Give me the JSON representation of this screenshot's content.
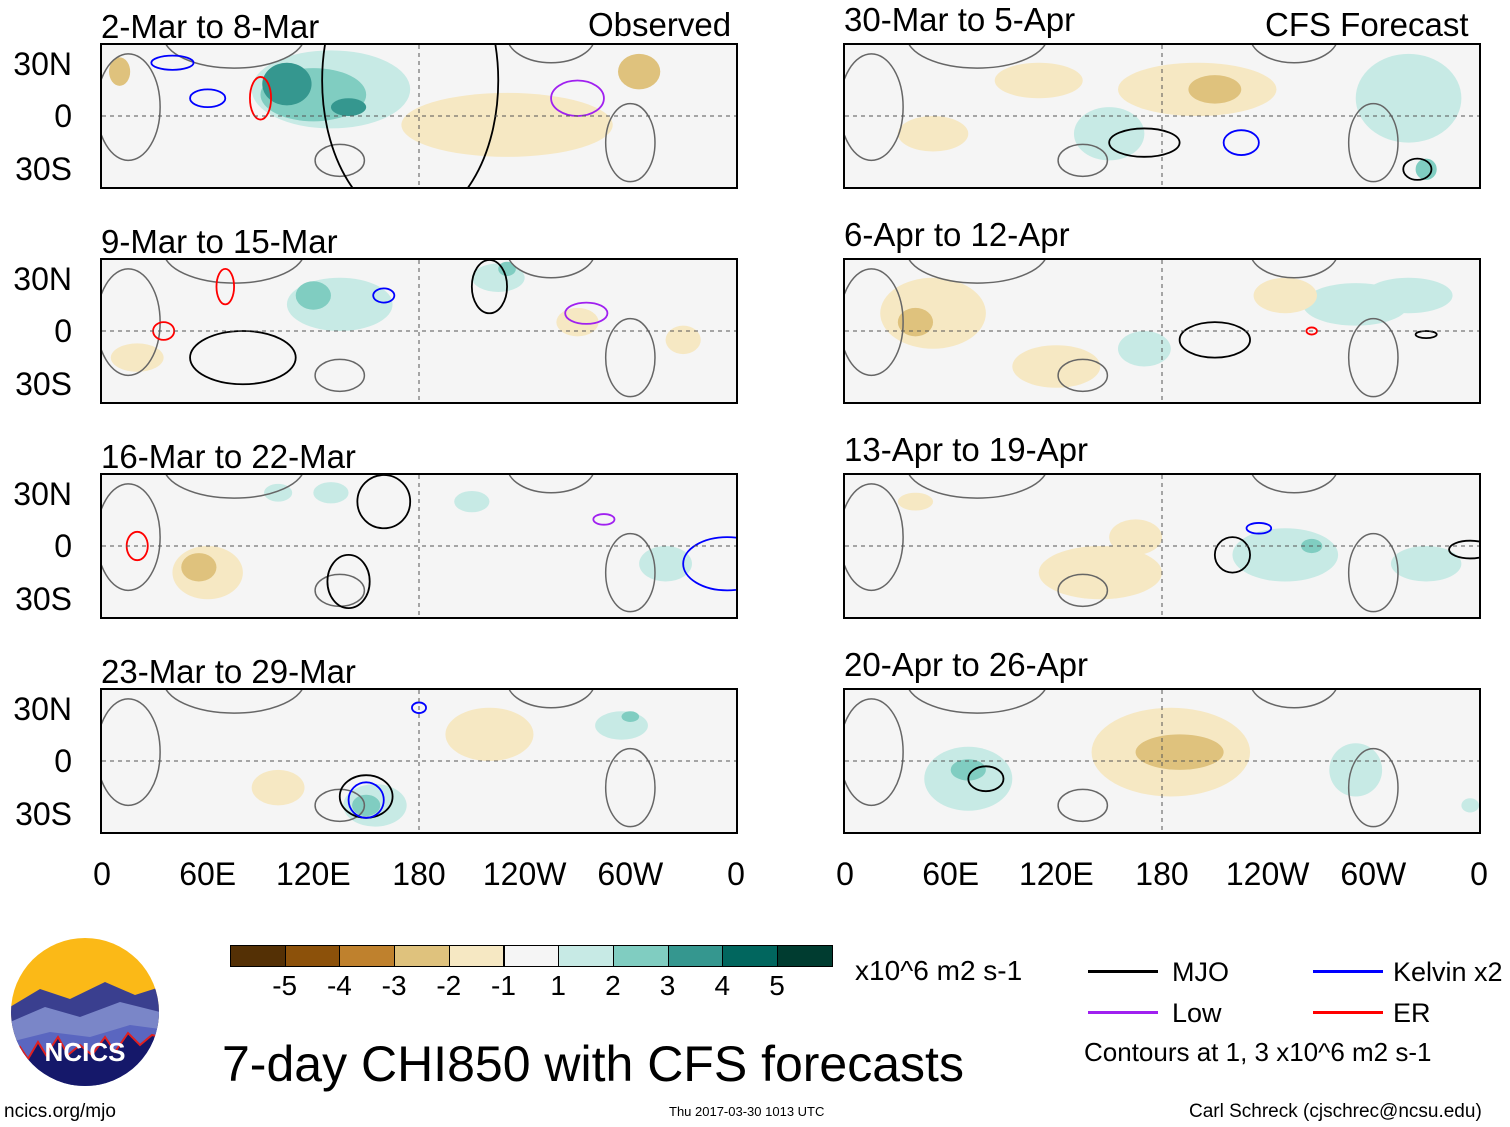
{
  "header": {
    "left_label": "Observed",
    "right_label": "CFS Forecast"
  },
  "panels": [
    {
      "title": "2-Mar to 8-Mar"
    },
    {
      "title": "9-Mar to 15-Mar"
    },
    {
      "title": "16-Mar to 22-Mar"
    },
    {
      "title": "23-Mar to 29-Mar"
    },
    {
      "title": "30-Mar to 5-Apr"
    },
    {
      "title": "6-Apr to 12-Apr"
    },
    {
      "title": "13-Apr to 19-Apr"
    },
    {
      "title": "20-Apr to 26-Apr"
    }
  ],
  "lat_labels": [
    "30N",
    "0",
    "30S"
  ],
  "lon_labels": [
    "0",
    "60E",
    "120E",
    "180",
    "120W",
    "60W",
    "0"
  ],
  "colorbar": {
    "labels": [
      "-5",
      "-4",
      "-3",
      "-2",
      "-1",
      "1",
      "2",
      "3",
      "4",
      "5"
    ],
    "colors": [
      "#543005",
      "#8c510a",
      "#bf812d",
      "#dfc27d",
      "#f6e8c3",
      "#f5f5f5",
      "#c7eae5",
      "#80cdc1",
      "#35978f",
      "#01665e",
      "#003c30"
    ],
    "units": "x10^6 m2 s-1"
  },
  "legend": {
    "items": [
      {
        "label": "MJO",
        "color": "#000000"
      },
      {
        "label": "Kelvin x2",
        "color": "#0000ff"
      },
      {
        "label": "Low",
        "color": "#a020f0"
      },
      {
        "label": "ER",
        "color": "#ff0000"
      }
    ],
    "contours_note": "Contours at 1, 3 x10^6 m2 s-1"
  },
  "title": "7-day CHI850 with CFS forecasts",
  "logo_text": "NCICS",
  "footer": {
    "url": "ncics.org/mjo",
    "timestamp": "Thu 2017-03-30 1013 UTC",
    "author": "Carl Schreck (cjschrec@ncsu.edu)"
  }
}
